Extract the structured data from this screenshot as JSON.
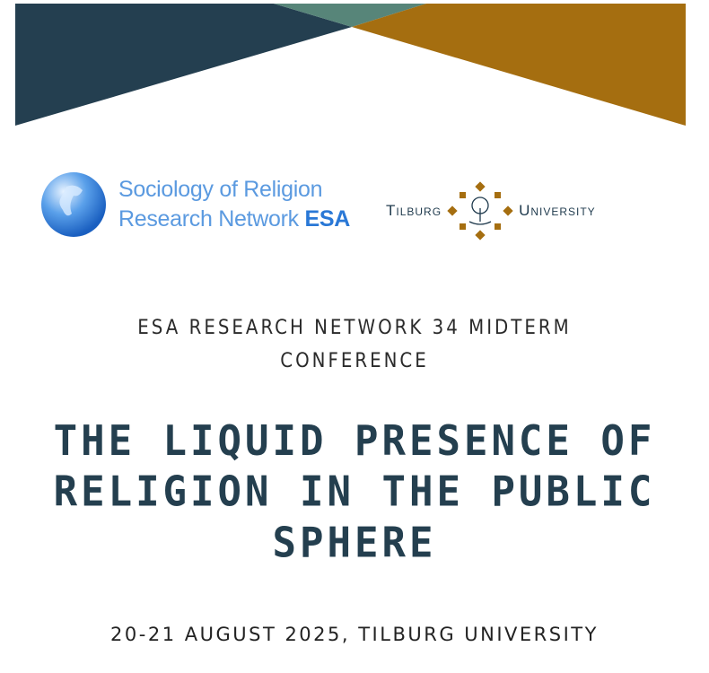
{
  "colors": {
    "navy": "#243f50",
    "teal": "#578579",
    "gold": "#a56e10",
    "esa_blue": "#5b9ae0"
  },
  "logos": {
    "esa": {
      "line1": "Sociology of Religion",
      "line2_prefix": "Research Network ",
      "line2_bold": "ESA",
      "icon": "globe-icon"
    },
    "tilburg": {
      "left": "Tilburg",
      "right": "University",
      "icon": "tree-emblem-icon"
    }
  },
  "subtitle": {
    "line1": "ESA RESEARCH NETWORK 34 MIDTERM",
    "line2": "CONFERENCE"
  },
  "title": {
    "line1": "THE LIQUID PRESENCE OF",
    "line2": "RELIGION IN THE PUBLIC",
    "line3": "SPHERE"
  },
  "date": "20-21 AUGUST 2025, TILBURG UNIVERSITY"
}
